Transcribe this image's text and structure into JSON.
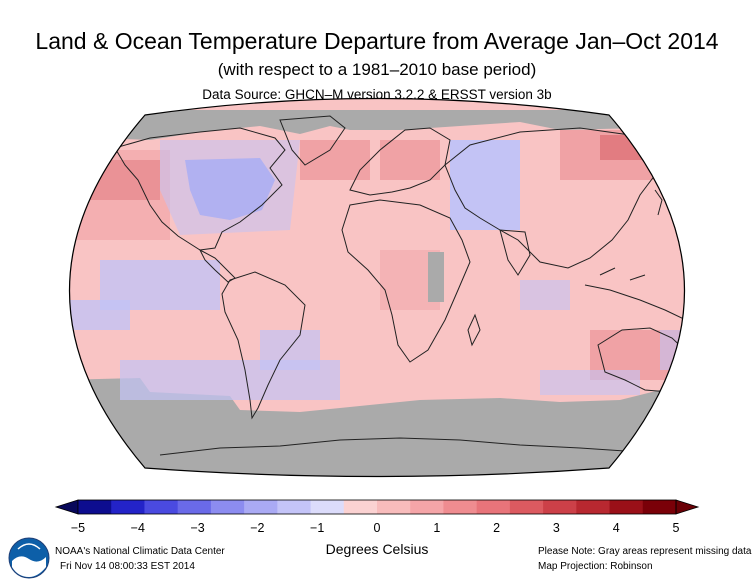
{
  "header": {
    "title": "Land & Ocean Temperature Departure from Average Jan–Oct 2014",
    "subtitle": "(with respect to a 1981–2010 base period)",
    "source": "Data Source: GHCN–M version 3.2.2 & ERSST version 3b"
  },
  "colorbar": {
    "ticks": [
      "−5",
      "−4",
      "−3",
      "−2",
      "−1",
      "0",
      "1",
      "2",
      "3",
      "4",
      "5"
    ],
    "units": "Degrees Celsius",
    "colors": [
      "#0d0d8f",
      "#2323c8",
      "#4a4ae0",
      "#6a6ae8",
      "#8c8cf0",
      "#aaaaf4",
      "#c4c4f8",
      "#dcdcfb",
      "#fbd2d2",
      "#f8bcbc",
      "#f5a5a8",
      "#ef8c90",
      "#e8747a",
      "#dc5a60",
      "#cc4048",
      "#b82830",
      "#9a1018",
      "#7a0008"
    ]
  },
  "footer": {
    "center_name": "NOAA's National Climatic Data Center",
    "date": "Fri Nov 14 08:00:33 EST 2014",
    "note": "Please Note: Gray areas represent missing data",
    "projection": "Map Projection: Robinson"
  },
  "map_colors": {
    "base": "#f9c4c4",
    "missing": "#aaaaaa",
    "cool": "#c3c3f5",
    "cooler": "#9b9beb",
    "warm": "#f0a2a5",
    "warmer": "#e27c81",
    "land_outline": "#222222"
  }
}
